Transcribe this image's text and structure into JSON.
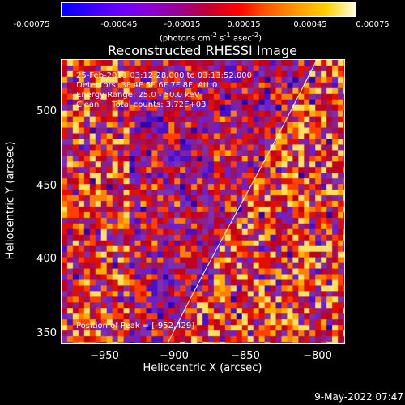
{
  "colorbar": {
    "ticks": [
      "-0.00075",
      "-0.00045",
      "-0.00015",
      "0.00015",
      "0.00045",
      "0.00075"
    ],
    "units_text": "(photons cm",
    "units_sup1": "-2",
    "units_mid": " s",
    "units_sup2": "-1",
    "units_mid2": " asec",
    "units_sup3": "-2",
    "units_end": ")"
  },
  "plot": {
    "title": "Reconstructed RHESSI Image",
    "info_lines": [
      "25-Feb-2011 03:12:28.000 to 03:13:52.000",
      "Detectors: 3F 4F 5F 6F 7F 8F, Att 0",
      "Energy Range: 25.0 - 50.0 keV",
      "Clean     Total counts: 3.72E+03"
    ],
    "peak_text": "Position of Peak = [-952,429]",
    "y_ticks": [
      "500",
      "450",
      "400",
      "350"
    ],
    "x_ticks": [
      "−950",
      "−900",
      "−850",
      "−800"
    ],
    "x_label": "Heliocentric X (arcsec)",
    "y_label": "Heliocentric Y (arcsec)"
  },
  "footer": {
    "date": "9-May-2022 07:47"
  }
}
